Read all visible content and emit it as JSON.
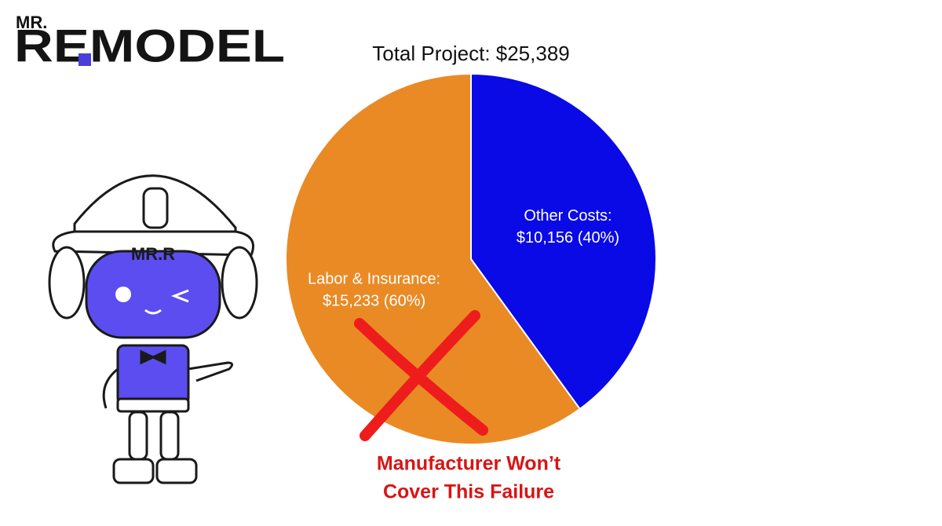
{
  "logo": {
    "top": "MR.",
    "main": "REMODEL"
  },
  "mascot": {
    "helmet_text": "MR.R"
  },
  "chart_data": {
    "type": "pie",
    "title": "Total Project: $25,389",
    "categories": [
      "Other Costs:",
      "Labor & Insurance:"
    ],
    "values": [
      10156,
      15233
    ],
    "value_labels": [
      "$10,156 (40%)",
      "$15,233 (60%)"
    ],
    "colors": [
      "#0a0ae6",
      "#e98a25"
    ],
    "annotation": [
      "Manufacturer Won’t",
      "Cover This Failure"
    ]
  }
}
